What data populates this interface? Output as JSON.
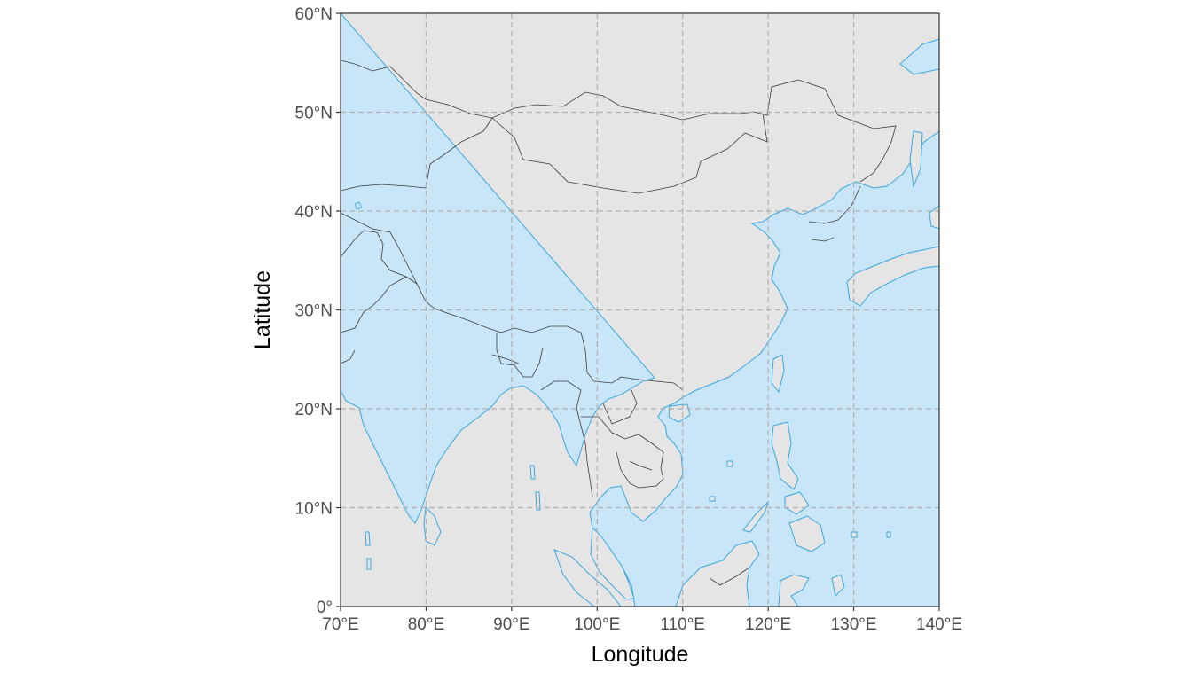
{
  "map": {
    "xlabel": "Longitude",
    "ylabel": "Latitude",
    "lon_range": [
      70,
      140
    ],
    "lat_range": [
      0,
      60
    ],
    "lon_ticks": [
      {
        "value": 70,
        "label": "70°E"
      },
      {
        "value": 80,
        "label": "80°E"
      },
      {
        "value": 90,
        "label": "90°E"
      },
      {
        "value": 100,
        "label": "100°E"
      },
      {
        "value": 110,
        "label": "110°E"
      },
      {
        "value": 120,
        "label": "120°E"
      },
      {
        "value": 130,
        "label": "130°E"
      },
      {
        "value": 140,
        "label": "140°E"
      }
    ],
    "lat_ticks": [
      {
        "value": 0,
        "label": "0°"
      },
      {
        "value": 10,
        "label": "10°N"
      },
      {
        "value": 20,
        "label": "20°N"
      },
      {
        "value": 30,
        "label": "30°N"
      },
      {
        "value": 40,
        "label": "40°N"
      },
      {
        "value": 50,
        "label": "50°N"
      },
      {
        "value": 60,
        "label": "60°N"
      }
    ],
    "grid": true,
    "colors": {
      "ocean": "#c8e6f8",
      "land": "#e5e5e5",
      "coastline": "#3aa6df",
      "border": "#3a3a3a",
      "grid": "#b0b0b0"
    }
  }
}
